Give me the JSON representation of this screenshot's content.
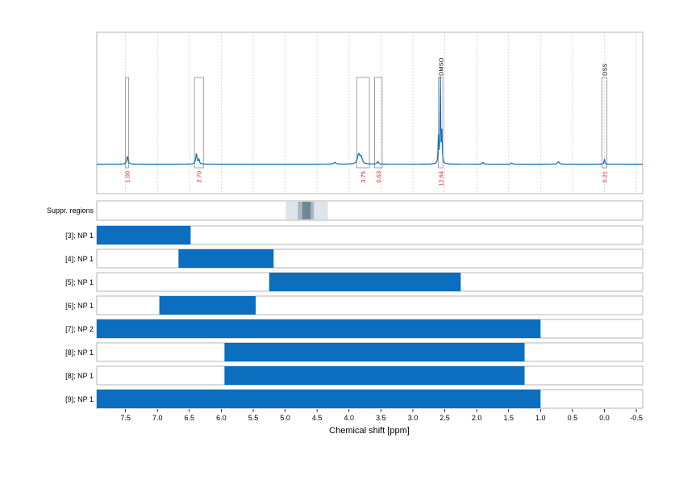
{
  "chart_data": {
    "type": "nmr-spectrum-with-ranges",
    "xlabel": "Chemical shift [ppm]",
    "x_reversed": true,
    "xlim": [
      7.95,
      -0.6
    ],
    "x_ticks": [
      7.5,
      7.0,
      6.5,
      6.0,
      5.5,
      5.0,
      4.5,
      4.0,
      3.5,
      3.0,
      2.5,
      2.0,
      1.5,
      1.0,
      0.5,
      0.0,
      -0.5
    ],
    "x_tick_labels": [
      "7.5",
      "7.0",
      "6.5",
      "6.0",
      "5.5",
      "5.0",
      "4.5",
      "4.0",
      "3.5",
      "3.0",
      "2.5",
      "2.0",
      "1.5",
      "1.0",
      "0.5",
      "0.0",
      "-0.5"
    ],
    "spectrum": {
      "color": "#0b6ebe",
      "baseline": 0.0,
      "peaks": [
        {
          "ppm": 7.47,
          "height": 0.09,
          "width": 0.012
        },
        {
          "ppm": 6.39,
          "height": 0.12,
          "width": 0.012
        },
        {
          "ppm": 6.35,
          "height": 0.05,
          "width": 0.01
        },
        {
          "ppm": 3.85,
          "height": 0.11,
          "width": 0.02
        },
        {
          "ppm": 3.81,
          "height": 0.08,
          "width": 0.02
        },
        {
          "ppm": 3.55,
          "height": 0.03,
          "width": 0.012
        },
        {
          "ppm": 2.57,
          "height": 0.98,
          "width": 0.006
        },
        {
          "ppm": 2.545,
          "height": 0.35,
          "width": 0.006
        },
        {
          "ppm": 2.6,
          "height": 0.3,
          "width": 0.006
        },
        {
          "ppm": 4.22,
          "height": 0.02,
          "width": 0.02
        },
        {
          "ppm": 0.72,
          "height": 0.03,
          "width": 0.015
        },
        {
          "ppm": 1.9,
          "height": 0.02,
          "width": 0.01
        },
        {
          "ppm": 1.45,
          "height": 0.015,
          "width": 0.01
        },
        {
          "ppm": 0.0,
          "height": 0.06,
          "width": 0.008
        }
      ]
    },
    "integrals": [
      {
        "start": 7.5,
        "end": 7.45,
        "value": "1.00",
        "label": ""
      },
      {
        "start": 6.42,
        "end": 6.28,
        "value": "2.70",
        "label": ""
      },
      {
        "start": 3.88,
        "end": 3.68,
        "value": "3.75",
        "label": ""
      },
      {
        "start": 3.6,
        "end": 3.48,
        "value": "0.63",
        "label": ""
      },
      {
        "start": 2.6,
        "end": 2.53,
        "value": "12.64",
        "label": "DMSO"
      },
      {
        "start": 0.04,
        "end": -0.04,
        "value": "0.21",
        "label": "DSS"
      }
    ],
    "suppression": {
      "label": "Suppr. regions",
      "regions": [
        {
          "start": 4.99,
          "end": 4.33,
          "shade": "light"
        },
        {
          "start": 4.8,
          "end": 4.55,
          "shade": "medium"
        },
        {
          "start": 4.73,
          "end": 4.6,
          "shade": "dark"
        }
      ]
    },
    "ranges": [
      {
        "label": "[3]; NP 1",
        "start": 7.95,
        "end": 6.48
      },
      {
        "label": "[4]; NP 1",
        "start": 6.67,
        "end": 5.18
      },
      {
        "label": "[5]; NP 1",
        "start": 5.25,
        "end": 2.25
      },
      {
        "label": "[6]; NP 1",
        "start": 6.97,
        "end": 5.46
      },
      {
        "label": "[7]; NP 2",
        "start": 7.95,
        "end": 1.0
      },
      {
        "label": "[8]; NP 1",
        "start": 5.95,
        "end": 1.25
      },
      {
        "label": "[8]; NP 1",
        "start": 5.95,
        "end": 1.25
      },
      {
        "label": "[9]; NP 1",
        "start": 7.95,
        "end": 1.0
      }
    ],
    "colors": {
      "bar": "#0b6ebe",
      "integral_label": "#e0201b",
      "frame": "#b4b4b4",
      "grid": "#d2d2d2",
      "supp_light": "#dde4ea",
      "supp_medium": "#a7b7c4",
      "supp_dark": "#6f8796"
    }
  }
}
